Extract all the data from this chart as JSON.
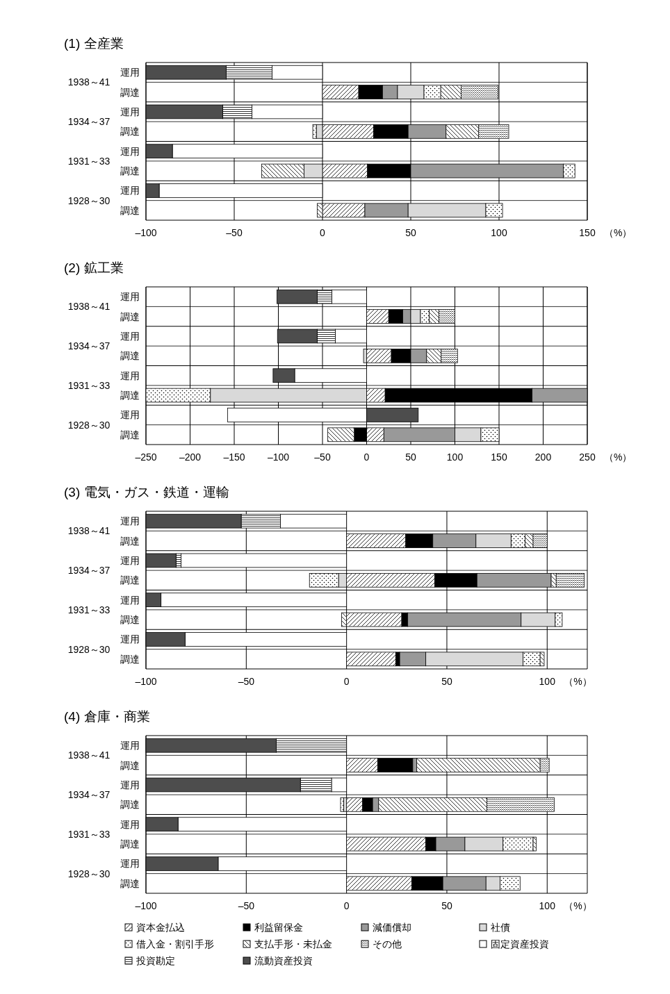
{
  "chart_data": [
    {
      "type": "bar",
      "orientation": "horizontal",
      "stacked": true,
      "grid": "x",
      "title": "(1) 全産業",
      "xlabel": "（%）",
      "categories": [
        "運用",
        "調達",
        "運用",
        "調達",
        "運用",
        "調達",
        "運用",
        "調達"
      ],
      "annotations": [
        "1938～41",
        "1934～37",
        "1931～33",
        "1928～30"
      ],
      "xlim": [
        -100,
        150
      ],
      "xticks": [
        {
          "value": -100,
          "label": "–100"
        },
        {
          "value": -50,
          "label": "–50"
        },
        0,
        50,
        100,
        150
      ],
      "series": [
        {
          "color": "#ffffff",
          "values": [
            null,
            20.5,
            null,
            29,
            null,
            25.5,
            null,
            24
          ]
        },
        {
          "color": "#000000",
          "values": [
            null,
            13.5,
            null,
            19.5,
            null,
            24.5,
            null,
            null
          ]
        },
        {
          "color": "#999999",
          "values": [
            null,
            8.5,
            null,
            21.5,
            null,
            86.5,
            null,
            24.5
          ]
        },
        {
          "color": "#d9d9d9",
          "values": [
            null,
            15,
            null,
            -3.5,
            null,
            -10.5,
            null,
            44
          ]
        },
        {
          "color": "#ffffff",
          "values": [
            null,
            9.5,
            null,
            -2,
            null,
            6.5,
            null,
            9.5
          ]
        },
        {
          "color": "#ffffff",
          "values": [
            null,
            11.5,
            null,
            18.5,
            null,
            -24,
            null,
            -3
          ]
        },
        {
          "color": "#ffffff",
          "values": [
            null,
            21,
            null,
            17,
            null,
            null,
            null,
            null
          ]
        },
        {
          "color": "#ffffff",
          "values": [
            -28.5,
            null,
            -40,
            null,
            -85,
            null,
            -92.5,
            null
          ]
        },
        {
          "color": "#ffffff",
          "values": [
            -26,
            null,
            -16.5,
            null,
            null,
            null,
            null,
            null
          ]
        },
        {
          "color": "#4d4d4d",
          "values": [
            -45.5,
            null,
            -43.5,
            null,
            -15,
            null,
            -7.5,
            null
          ]
        }
      ]
    },
    {
      "type": "bar",
      "orientation": "horizontal",
      "stacked": true,
      "grid": "x",
      "title": "(2) 鉱工業",
      "xlabel": "（%）",
      "categories": [
        "運用",
        "調達",
        "運用",
        "調達",
        "運用",
        "調達",
        "運用",
        "調達"
      ],
      "annotations": [
        "1938～41",
        "1934～37",
        "1931～33",
        "1928～30"
      ],
      "xlim": [
        -250,
        250
      ],
      "xticks": [
        {
          "value": -250,
          "label": "–250"
        },
        {
          "value": -200,
          "label": "–200"
        },
        {
          "value": -150,
          "label": "–150"
        },
        {
          "value": -100,
          "label": "–100"
        },
        {
          "value": -50,
          "label": "–50"
        },
        0,
        50,
        100,
        150,
        200,
        250
      ],
      "series": [
        {
          "color": "#ffffff",
          "values": [
            null,
            25,
            null,
            28,
            null,
            21,
            null,
            19.5
          ]
        },
        {
          "color": "#000000",
          "values": [
            null,
            16,
            null,
            22,
            null,
            166.5,
            null,
            -14
          ]
        },
        {
          "color": "#999999",
          "values": [
            null,
            9,
            null,
            18,
            null,
            62.5,
            null,
            80.5
          ]
        },
        {
          "color": "#d9d9d9",
          "values": [
            null,
            11,
            null,
            -3.5,
            null,
            -177,
            null,
            29.5
          ]
        },
        {
          "color": "#ffffff",
          "values": [
            null,
            10,
            null,
            null,
            null,
            -73,
            null,
            20.5
          ]
        },
        {
          "color": "#ffffff",
          "values": [
            null,
            11,
            null,
            16.5,
            null,
            null,
            null,
            -30
          ]
        },
        {
          "color": "#ffffff",
          "values": [
            null,
            18,
            null,
            18.5,
            null,
            null,
            null,
            null
          ]
        },
        {
          "color": "#ffffff",
          "values": [
            -39.5,
            null,
            -35.5,
            null,
            -81.5,
            null,
            -157.5,
            null
          ]
        },
        {
          "color": "#ffffff",
          "values": [
            -16.5,
            null,
            -20.5,
            null,
            null,
            null,
            null,
            null
          ]
        },
        {
          "color": "#4d4d4d",
          "values": [
            -45.5,
            null,
            -45,
            null,
            -24.5,
            null,
            58.5,
            null
          ]
        }
      ]
    },
    {
      "type": "bar",
      "orientation": "horizontal",
      "stacked": true,
      "grid": "x",
      "title": "(3) 電気・ガス・鉄道・運輸",
      "xlabel": "（%）",
      "categories": [
        "運用",
        "調達",
        "運用",
        "調達",
        "運用",
        "調達",
        "運用",
        "調達"
      ],
      "annotations": [
        "1938～41",
        "1934～37",
        "1931～33",
        "1928～30"
      ],
      "xlim": [
        -100,
        120
      ],
      "xticks": [
        {
          "value": -100,
          "label": "–100"
        },
        {
          "value": -50,
          "label": "–50"
        },
        0,
        50,
        100
      ],
      "series": [
        {
          "color": "#ffffff",
          "values": [
            null,
            29.5,
            null,
            44,
            null,
            27.5,
            null,
            24.5
          ]
        },
        {
          "color": "#000000",
          "values": [
            null,
            13.5,
            null,
            21,
            null,
            3,
            null,
            2
          ]
        },
        {
          "color": "#999999",
          "values": [
            null,
            21.5,
            null,
            37,
            null,
            56.5,
            null,
            13
          ]
        },
        {
          "color": "#d9d9d9",
          "values": [
            null,
            17.5,
            null,
            -4,
            null,
            17,
            null,
            48.5
          ]
        },
        {
          "color": "#ffffff",
          "values": [
            null,
            7,
            null,
            -14.5,
            null,
            3.5,
            null,
            8.5
          ]
        },
        {
          "color": "#ffffff",
          "values": [
            null,
            4,
            null,
            2.5,
            null,
            -2.5,
            null,
            2
          ]
        },
        {
          "color": "#ffffff",
          "values": [
            null,
            7,
            null,
            14,
            null,
            null,
            null,
            null
          ]
        },
        {
          "color": "#ffffff",
          "values": [
            -33,
            null,
            -82.5,
            null,
            -92.5,
            null,
            -80.5,
            null
          ]
        },
        {
          "color": "#ffffff",
          "values": [
            -19.5,
            null,
            -2.5,
            null,
            null,
            null,
            null,
            null
          ]
        },
        {
          "color": "#4d4d4d",
          "values": [
            -47.5,
            null,
            -15,
            null,
            -7.5,
            null,
            -19.5,
            null
          ]
        }
      ]
    },
    {
      "type": "bar",
      "orientation": "horizontal",
      "stacked": true,
      "grid": "x",
      "title": "(4) 倉庫・商業",
      "xlabel": "（%）",
      "legend": "bottom",
      "categories": [
        "運用",
        "調達",
        "運用",
        "調達",
        "運用",
        "調達",
        "運用",
        "調達"
      ],
      "annotations": [
        "1938～41",
        "1934～37",
        "1931～33",
        "1928～30"
      ],
      "xlim": [
        -100,
        120
      ],
      "xticks": [
        {
          "value": -100,
          "label": "–100"
        },
        {
          "value": -50,
          "label": "–50"
        },
        0,
        50,
        100
      ],
      "series": [
        {
          "name": "資本金払込",
          "color": "#ffffff",
          "values": [
            null,
            15.5,
            null,
            8,
            null,
            39.5,
            null,
            32.5
          ]
        },
        {
          "name": "利益留保金",
          "color": "#000000",
          "values": [
            null,
            17.5,
            null,
            5,
            null,
            5,
            null,
            15.5
          ]
        },
        {
          "name": "減価償却",
          "color": "#999999",
          "values": [
            null,
            2,
            null,
            3,
            null,
            14.5,
            null,
            21.5
          ]
        },
        {
          "name": "社債",
          "color": "#d9d9d9",
          "values": [
            null,
            null,
            null,
            -1.5,
            null,
            19,
            null,
            7
          ]
        },
        {
          "name": "借入金・割引手形",
          "color": "#ffffff",
          "values": [
            null,
            null,
            null,
            -1.5,
            null,
            15,
            null,
            10
          ]
        },
        {
          "name": "支払手形・未払金",
          "color": "#ffffff",
          "values": [
            null,
            61.5,
            null,
            54,
            null,
            1.5,
            null,
            null
          ]
        },
        {
          "name": "その他",
          "color": "#ffffff",
          "values": [
            null,
            4.5,
            null,
            33.5,
            null,
            null,
            null,
            null
          ]
        },
        {
          "name": "固定資産投資",
          "color": "#ffffff",
          "values": [
            null,
            null,
            -7.5,
            null,
            -84,
            null,
            -64,
            null
          ]
        },
        {
          "name": "投資勘定",
          "color": "#ffffff",
          "values": [
            -35,
            null,
            -15.5,
            null,
            null,
            null,
            null,
            null
          ]
        },
        {
          "name": "流動資産投資",
          "color": "#4d4d4d",
          "values": [
            -65,
            null,
            -77,
            null,
            -16,
            null,
            -36,
            null
          ]
        }
      ]
    }
  ]
}
